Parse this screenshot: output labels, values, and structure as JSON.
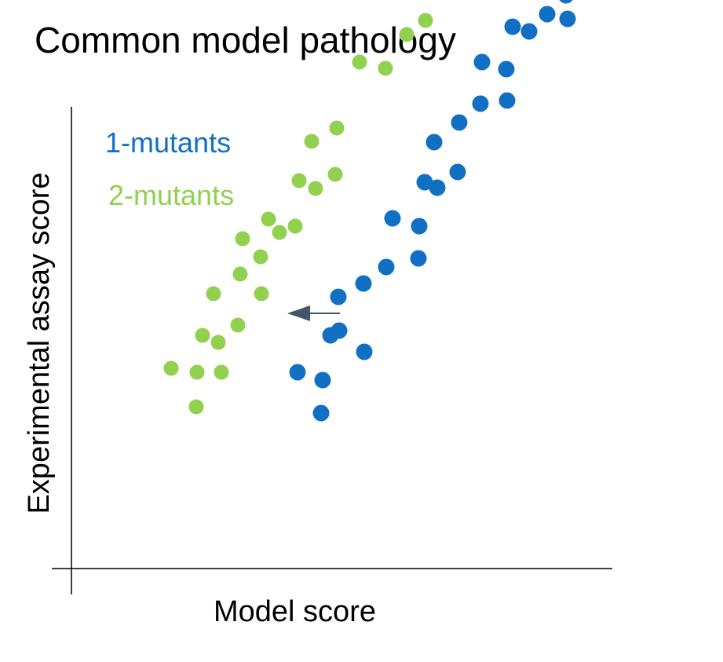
{
  "chart_data": {
    "type": "scatter",
    "title": "Common model pathology",
    "xlabel": "Model score",
    "ylabel": "Experimental assay score",
    "xlim": [
      0,
      1
    ],
    "ylim": [
      0,
      1
    ],
    "grid": false,
    "legend_position": "top-left",
    "annotation": "arrow pointing left from 1-mutants toward 2-mutants",
    "series": [
      {
        "name": "1-mutants",
        "color": "#1170c4",
        "points": [
          [
            0.288,
            0.25
          ],
          [
            0.32,
            0.24
          ],
          [
            0.318,
            0.198
          ],
          [
            0.341,
            0.303
          ],
          [
            0.33,
            0.297
          ],
          [
            0.34,
            0.346
          ],
          [
            0.373,
            0.276
          ],
          [
            0.372,
            0.363
          ],
          [
            0.401,
            0.384
          ],
          [
            0.409,
            0.446
          ],
          [
            0.442,
            0.395
          ],
          [
            0.443,
            0.436
          ],
          [
            0.45,
            0.492
          ],
          [
            0.466,
            0.485
          ],
          [
            0.462,
            0.543
          ],
          [
            0.492,
            0.505
          ],
          [
            0.494,
            0.568
          ],
          [
            0.521,
            0.592
          ],
          [
            0.523,
            0.645
          ],
          [
            0.554,
            0.636
          ],
          [
            0.555,
            0.596
          ],
          [
            0.562,
            0.69
          ],
          [
            0.576,
            0.747
          ],
          [
            0.583,
            0.684
          ],
          [
            0.606,
            0.706
          ],
          [
            0.608,
            0.765
          ],
          [
            0.63,
            0.73
          ],
          [
            0.633,
            0.79
          ],
          [
            0.632,
            0.7
          ]
        ]
      },
      {
        "name": "2-mutants",
        "color": "#92d050",
        "points": [
          [
            0.127,
            0.255
          ],
          [
            0.16,
            0.25
          ],
          [
            0.159,
            0.206
          ],
          [
            0.191,
            0.25
          ],
          [
            0.167,
            0.297
          ],
          [
            0.187,
            0.288
          ],
          [
            0.212,
            0.31
          ],
          [
            0.181,
            0.35
          ],
          [
            0.215,
            0.375
          ],
          [
            0.242,
            0.35
          ],
          [
            0.241,
            0.397
          ],
          [
            0.218,
            0.42
          ],
          [
            0.251,
            0.445
          ],
          [
            0.265,
            0.428
          ],
          [
            0.285,
            0.436
          ],
          [
            0.29,
            0.494
          ],
          [
            0.311,
            0.484
          ],
          [
            0.336,
            0.502
          ],
          [
            0.306,
            0.544
          ],
          [
            0.338,
            0.561
          ],
          [
            0.367,
            0.645
          ],
          [
            0.4,
            0.637
          ],
          [
            0.427,
            0.68
          ],
          [
            0.451,
            0.698
          ],
          [
            0.479,
            0.785
          ],
          [
            0.524,
            0.84
          ],
          [
            0.542,
            0.868
          ]
        ]
      }
    ]
  }
}
